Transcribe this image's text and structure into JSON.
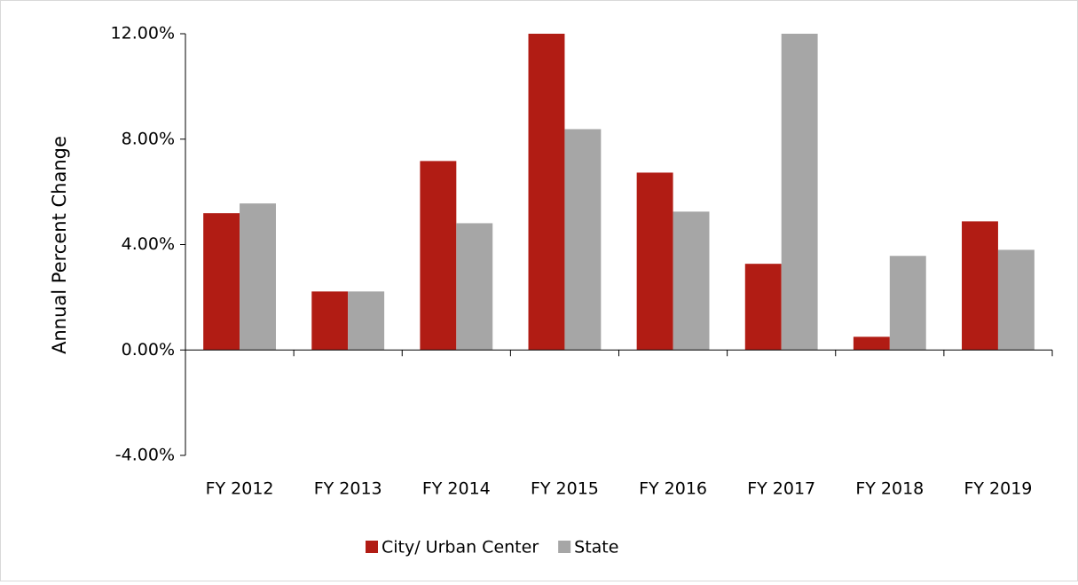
{
  "chart_data": {
    "type": "bar",
    "y_label": "Annual  Percent  Change",
    "categories": [
      "FY 2012",
      "FY 2013",
      "FY 2014",
      "FY 2015",
      "FY 2016",
      "FY 2017",
      "FY 2018",
      "FY 2019"
    ],
    "series": [
      {
        "name": "City/ Urban Center",
        "color": "#b11c14",
        "values": [
          5.19,
          2.22,
          7.17,
          12,
          6.73,
          3.27,
          0.5,
          4.88
        ]
      },
      {
        "name": "State",
        "color": "#a6a6a6",
        "values": [
          5.56,
          2.22,
          4.81,
          8.38,
          5.25,
          12,
          3.57,
          3.8
        ]
      }
    ],
    "ylim": [
      -4,
      12
    ],
    "yticks": [
      {
        "value": -4,
        "label": "-4.00%"
      },
      {
        "value": 0,
        "label": "0.00%"
      },
      {
        "value": 4,
        "label": "4.00%"
      },
      {
        "value": 8,
        "label": "8.00%"
      },
      {
        "value": 12,
        "label": "12.00%"
      }
    ],
    "legend": "bottom"
  }
}
